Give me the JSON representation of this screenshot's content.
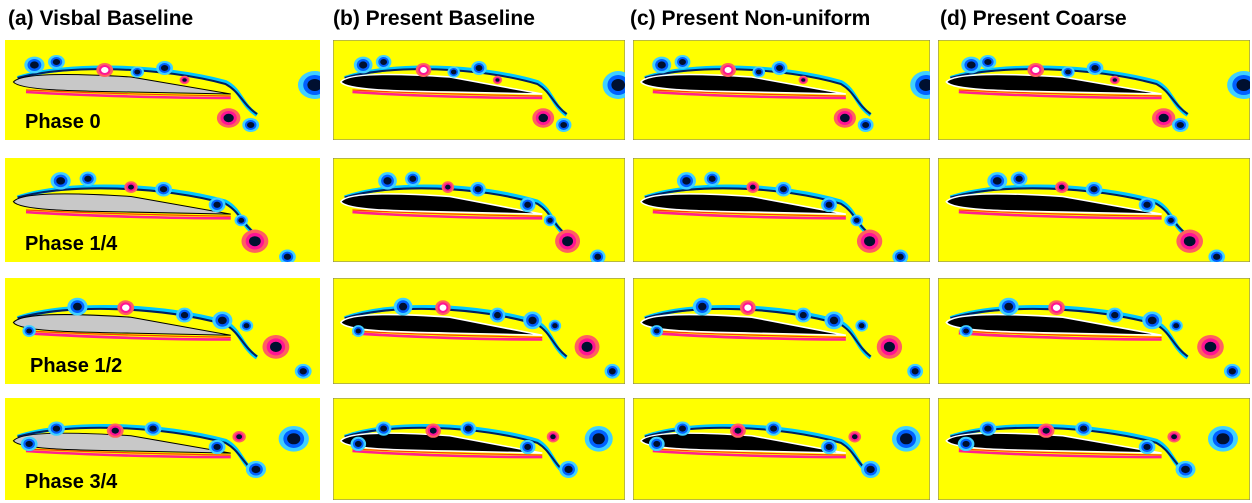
{
  "columns": [
    {
      "title": "(a) Visbal Baseline"
    },
    {
      "title": "(b) Present Baseline"
    },
    {
      "title": "(c) Present Non-uniform"
    },
    {
      "title": "(d) Present Coarse"
    }
  ],
  "phases": [
    "Phase 0",
    "Phase 1/4",
    "Phase 1/2",
    "Phase 3/4"
  ]
}
